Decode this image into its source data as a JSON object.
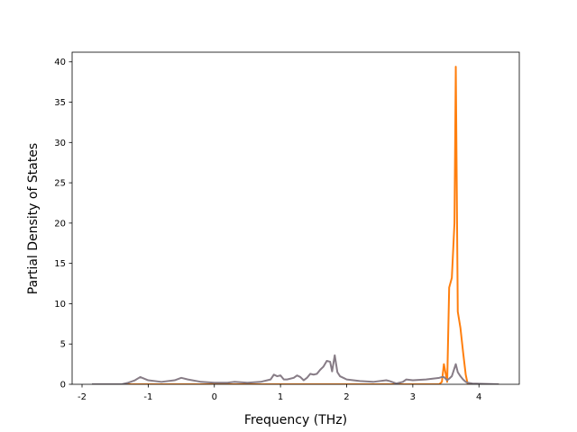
{
  "chart_data": {
    "type": "line",
    "xlabel": "Frequency (THz)",
    "ylabel": "Partial Density of States",
    "x": [
      -1.85,
      -1.4,
      -1.3,
      -1.2,
      -1.12,
      -1.0,
      -0.8,
      -0.6,
      -0.5,
      -0.4,
      -0.2,
      0,
      0.2,
      0.3,
      0.5,
      0.7,
      0.85,
      0.9,
      0.95,
      1.0,
      1.05,
      1.1,
      1.2,
      1.25,
      1.3,
      1.35,
      1.4,
      1.45,
      1.5,
      1.55,
      1.6,
      1.65,
      1.7,
      1.75,
      1.78,
      1.82,
      1.86,
      1.9,
      2.0,
      2.2,
      2.4,
      2.6,
      2.65,
      2.75,
      2.85,
      2.9,
      3.0,
      3.2,
      3.4,
      3.44,
      3.47,
      3.52,
      3.55,
      3.59,
      3.63,
      3.65,
      3.68,
      3.72,
      3.76,
      3.8,
      3.83,
      3.9,
      4.3
    ],
    "series": [
      {
        "color": "#ff7f0e",
        "values": [
          0,
          0,
          0,
          0,
          0,
          0,
          0,
          0,
          0,
          0,
          0,
          0,
          0,
          0,
          0,
          0,
          0,
          0,
          0,
          0,
          0,
          0,
          0,
          0,
          0,
          0,
          0,
          0,
          0,
          0,
          0,
          0,
          0,
          0,
          0,
          0,
          0,
          0,
          0,
          0,
          0,
          0,
          0,
          0,
          0,
          0,
          0,
          0,
          0,
          0.3,
          2.5,
          0.3,
          12,
          13.2,
          20,
          39.4,
          9,
          7,
          4,
          1.2,
          0,
          0,
          0
        ]
      },
      {
        "color": "#877c86",
        "values": [
          0,
          0,
          0.2,
          0.5,
          0.9,
          0.5,
          0.3,
          0.5,
          0.8,
          0.6,
          0.3,
          0.2,
          0.2,
          0.3,
          0.2,
          0.3,
          0.6,
          1.2,
          1.0,
          1.1,
          0.6,
          0.6,
          0.8,
          1.1,
          0.9,
          0.5,
          0.8,
          1.3,
          1.2,
          1.3,
          1.8,
          2.2,
          2.9,
          2.8,
          1.6,
          3.6,
          1.5,
          1.0,
          0.6,
          0.4,
          0.3,
          0.5,
          0.4,
          0.1,
          0.3,
          0.6,
          0.5,
          0.6,
          0.8,
          0.9,
          0.9,
          0.5,
          0.7,
          1.0,
          2.0,
          2.5,
          1.5,
          1.0,
          0.6,
          0.3,
          0.2,
          0.1,
          0
        ]
      }
    ],
    "xlim": [
      -2.15,
      4.61
    ],
    "xticks": [
      -2,
      -1,
      0,
      1,
      2,
      3,
      4
    ],
    "ylim": [
      0,
      41.2
    ],
    "yticks": [
      0,
      5,
      10,
      15,
      20,
      25,
      30,
      35,
      40
    ]
  }
}
